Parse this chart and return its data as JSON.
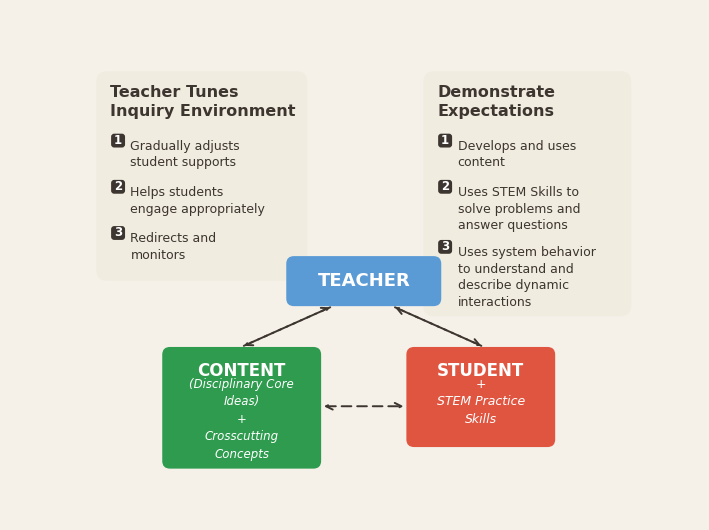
{
  "bg_color": "#f5f0e8",
  "card_bg": "#f0ece0",
  "teacher_color": "#5b9bd5",
  "content_color": "#2e9b4e",
  "student_color": "#e05540",
  "badge_color": "#3d3530",
  "text_dark": "#3d3530",
  "text_white": "#ffffff",
  "left_title": "Teacher Tunes\nInquiry Environment",
  "right_title": "Demonstrate\nExpectations",
  "left_items": [
    "Gradually adjusts\nstudent supports",
    "Helps students\nengage appropriately",
    "Redirects and\nmonitors"
  ],
  "right_items": [
    "Develops and uses\ncontent",
    "Uses STEM Skills to\nsolve problems and\nanswer questions",
    "Uses system behavior\nto understand and\ndescribe dynamic\ninteractions"
  ],
  "teacher_label": "TEACHER",
  "content_label": "CONTENT",
  "content_sub": "(Disciplinary Core\nIdeas)\n+\nCrosscutting\nConcepts",
  "student_label": "STUDENT",
  "student_sub": "+\nSTEM Practice\nSkills"
}
